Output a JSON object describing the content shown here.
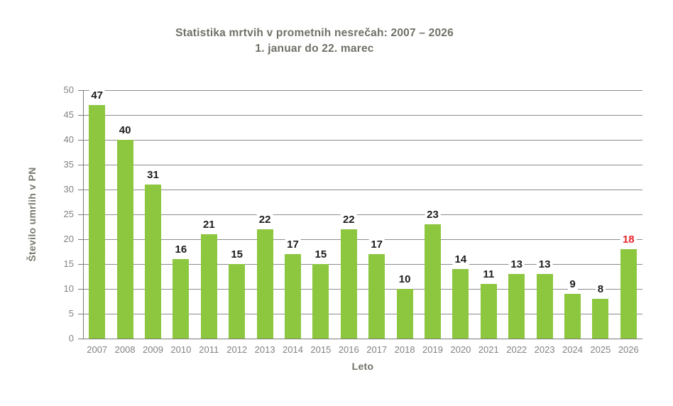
{
  "header": {
    "title": "Statistika mrtvih v prometnih nesrečah: 2007 – 2026",
    "subtitle": "1. januar do 22. marec"
  },
  "chart_data": {
    "type": "bar",
    "title": "Statistika mrtvih v prometnih nesrečah: 2007 – 2026",
    "subtitle": "1. januar do 22. marec",
    "xlabel": "Leto",
    "ylabel": "Število umrlih v PN",
    "categories": [
      "2007",
      "2008",
      "2009",
      "2010",
      "2011",
      "2012",
      "2013",
      "2014",
      "2015",
      "2016",
      "2017",
      "2018",
      "2019",
      "2020",
      "2021",
      "2022",
      "2023",
      "2024",
      "2025",
      "2026"
    ],
    "values": [
      47,
      40,
      31,
      16,
      21,
      15,
      22,
      17,
      15,
      22,
      17,
      10,
      23,
      14,
      11,
      13,
      13,
      9,
      8,
      18
    ],
    "ylim": [
      0,
      50
    ],
    "ytick_step": 5,
    "grid": true,
    "legend": "none",
    "highlight_index": 19,
    "highlight_color": "#e8242b",
    "bar_color": "#8dc63f",
    "value_label_color": "#1c1c1c",
    "grid_color": "#8c8c8c",
    "axis_color": "#7a7a7a",
    "tick_label_color": "#828282",
    "title_color": "#6f7167"
  }
}
